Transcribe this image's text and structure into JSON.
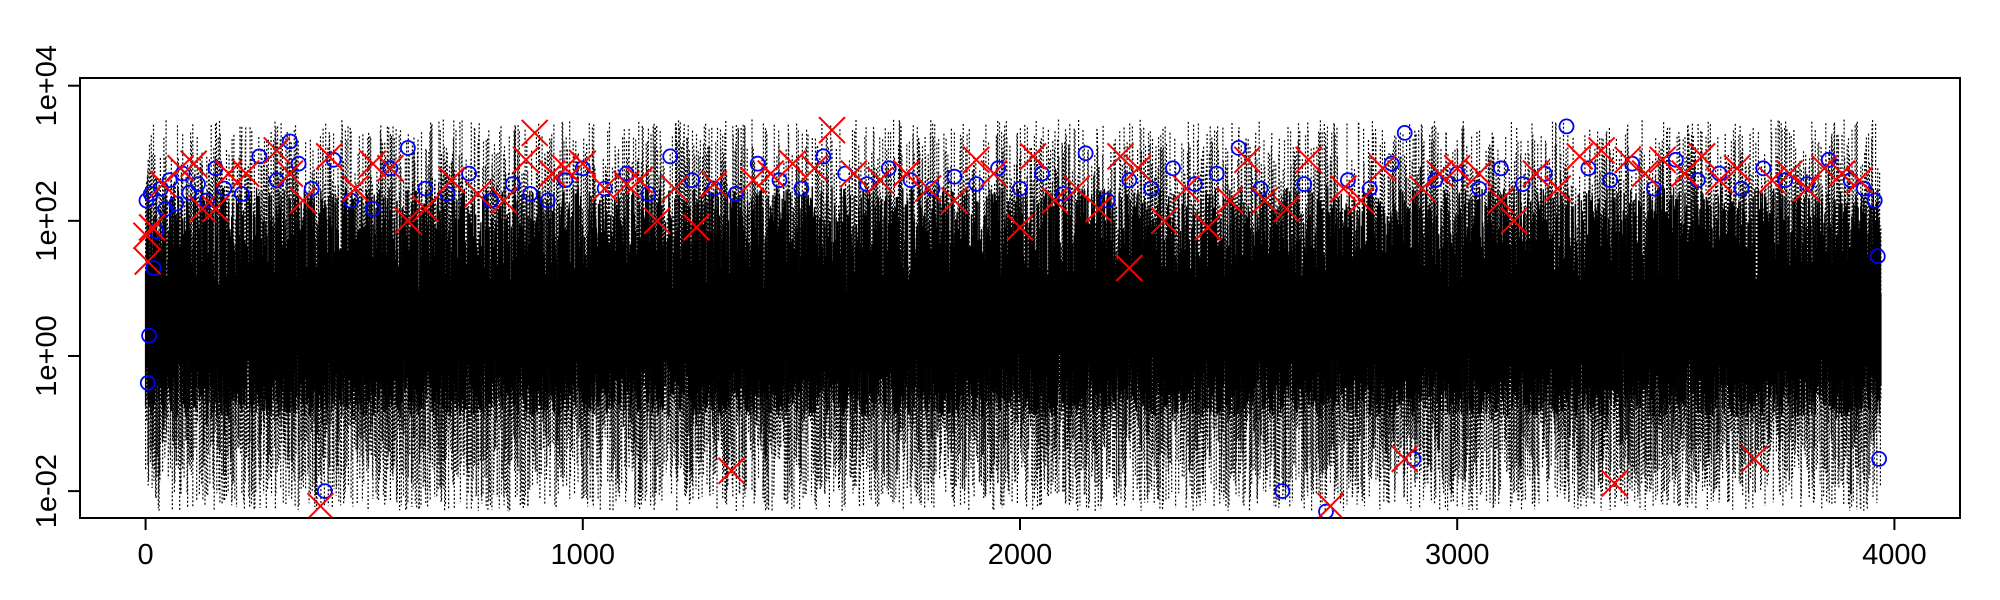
{
  "chart_data": {
    "type": "scatter",
    "title": "",
    "xlabel": "",
    "ylabel": "",
    "xlim": [
      -150,
      4150
    ],
    "ylim": [
      0.004,
      13000
    ],
    "y_scale": "log",
    "x_ticks": [
      0,
      1000,
      2000,
      3000,
      4000
    ],
    "x_tick_labels": [
      "0",
      "1000",
      "2000",
      "3000",
      "4000"
    ],
    "y_ticks": [
      0.01,
      1,
      100,
      10000
    ],
    "y_tick_labels": [
      "1e-02",
      "1e+00",
      "1e+02",
      "1e+04"
    ],
    "grid": false,
    "legend": "none",
    "n_points": 3970,
    "colors": {
      "series_line": "#000000",
      "circle_marker": "#0000ff",
      "cross_marker": "#ff0000",
      "axis": "#000000"
    },
    "series": [
      {
        "marker": "dotted-line",
        "color": "#000000",
        "note": "dense dotted spikes across full range"
      },
      {
        "marker": "circle",
        "color": "#0000ff",
        "points": [
          [
            2,
            200
          ],
          [
            5,
            0.4
          ],
          [
            8,
            2
          ],
          [
            12,
            250
          ],
          [
            18,
            20
          ],
          [
            25,
            70
          ],
          [
            35,
            300
          ],
          [
            45,
            150
          ],
          [
            55,
            400
          ],
          [
            70,
            180
          ],
          [
            85,
            500
          ],
          [
            100,
            260
          ],
          [
            120,
            350
          ],
          [
            140,
            200
          ],
          [
            160,
            600
          ],
          [
            180,
            300
          ],
          [
            220,
            250
          ],
          [
            260,
            900
          ],
          [
            300,
            400
          ],
          [
            330,
            1500
          ],
          [
            350,
            700
          ],
          [
            380,
            300
          ],
          [
            410,
            0.01
          ],
          [
            430,
            800
          ],
          [
            470,
            200
          ],
          [
            520,
            150
          ],
          [
            560,
            600
          ],
          [
            600,
            1200
          ],
          [
            640,
            300
          ],
          [
            690,
            250
          ],
          [
            740,
            500
          ],
          [
            790,
            200
          ],
          [
            840,
            350
          ],
          [
            880,
            250
          ],
          [
            920,
            200
          ],
          [
            960,
            400
          ],
          [
            1000,
            600
          ],
          [
            1050,
            300
          ],
          [
            1100,
            500
          ],
          [
            1150,
            250
          ],
          [
            1200,
            900
          ],
          [
            1250,
            400
          ],
          [
            1300,
            300
          ],
          [
            1350,
            250
          ],
          [
            1400,
            700
          ],
          [
            1450,
            400
          ],
          [
            1500,
            300
          ],
          [
            1550,
            900
          ],
          [
            1600,
            500
          ],
          [
            1650,
            350
          ],
          [
            1700,
            600
          ],
          [
            1750,
            400
          ],
          [
            1800,
            300
          ],
          [
            1850,
            450
          ],
          [
            1900,
            350
          ],
          [
            1950,
            600
          ],
          [
            2000,
            300
          ],
          [
            2050,
            500
          ],
          [
            2100,
            250
          ],
          [
            2150,
            1000
          ],
          [
            2200,
            200
          ],
          [
            2250,
            400
          ],
          [
            2300,
            300
          ],
          [
            2350,
            600
          ],
          [
            2400,
            350
          ],
          [
            2450,
            500
          ],
          [
            2500,
            1200
          ],
          [
            2550,
            300
          ],
          [
            2600,
            0.01
          ],
          [
            2650,
            350
          ],
          [
            2700,
            0.005
          ],
          [
            2750,
            400
          ],
          [
            2800,
            300
          ],
          [
            2850,
            700
          ],
          [
            2880,
            2000
          ],
          [
            2900,
            0.03
          ],
          [
            2950,
            400
          ],
          [
            3000,
            500
          ],
          [
            3050,
            300
          ],
          [
            3100,
            600
          ],
          [
            3150,
            350
          ],
          [
            3200,
            500
          ],
          [
            3250,
            2500
          ],
          [
            3300,
            600
          ],
          [
            3350,
            400
          ],
          [
            3400,
            700
          ],
          [
            3450,
            300
          ],
          [
            3500,
            800
          ],
          [
            3550,
            400
          ],
          [
            3600,
            500
          ],
          [
            3650,
            300
          ],
          [
            3700,
            600
          ],
          [
            3750,
            400
          ],
          [
            3800,
            350
          ],
          [
            3850,
            800
          ],
          [
            3900,
            400
          ],
          [
            3930,
            300
          ],
          [
            3955,
            200
          ],
          [
            3962,
            30
          ],
          [
            3965,
            0.03
          ]
        ]
      },
      {
        "marker": "cross",
        "color": "#ff0000",
        "points": [
          [
            2,
            60
          ],
          [
            5,
            25
          ],
          [
            15,
            80
          ],
          [
            40,
            350
          ],
          [
            80,
            600
          ],
          [
            110,
            700
          ],
          [
            130,
            150
          ],
          [
            160,
            150
          ],
          [
            190,
            500
          ],
          [
            230,
            500
          ],
          [
            300,
            1100
          ],
          [
            330,
            500
          ],
          [
            360,
            200
          ],
          [
            400,
            0.006
          ],
          [
            420,
            900
          ],
          [
            480,
            300
          ],
          [
            520,
            700
          ],
          [
            560,
            600
          ],
          [
            600,
            100
          ],
          [
            640,
            150
          ],
          [
            700,
            400
          ],
          [
            760,
            250
          ],
          [
            820,
            200
          ],
          [
            870,
            800
          ],
          [
            890,
            2000
          ],
          [
            930,
            500
          ],
          [
            960,
            600
          ],
          [
            1000,
            700
          ],
          [
            1050,
            300
          ],
          [
            1100,
            350
          ],
          [
            1130,
            400
          ],
          [
            1170,
            100
          ],
          [
            1210,
            300
          ],
          [
            1260,
            80
          ],
          [
            1300,
            350
          ],
          [
            1340,
            0.02
          ],
          [
            1390,
            400
          ],
          [
            1430,
            500
          ],
          [
            1480,
            700
          ],
          [
            1530,
            600
          ],
          [
            1570,
            2200
          ],
          [
            1620,
            500
          ],
          [
            1680,
            400
          ],
          [
            1740,
            500
          ],
          [
            1790,
            300
          ],
          [
            1850,
            200
          ],
          [
            1900,
            800
          ],
          [
            1940,
            500
          ],
          [
            2000,
            80
          ],
          [
            2030,
            900
          ],
          [
            2080,
            200
          ],
          [
            2130,
            300
          ],
          [
            2180,
            150
          ],
          [
            2230,
            900
          ],
          [
            2250,
            20
          ],
          [
            2270,
            600
          ],
          [
            2330,
            100
          ],
          [
            2380,
            300
          ],
          [
            2430,
            80
          ],
          [
            2480,
            200
          ],
          [
            2520,
            800
          ],
          [
            2560,
            200
          ],
          [
            2610,
            150
          ],
          [
            2660,
            800
          ],
          [
            2710,
            0.006
          ],
          [
            2740,
            300
          ],
          [
            2780,
            200
          ],
          [
            2830,
            600
          ],
          [
            2880,
            0.03
          ],
          [
            2920,
            300
          ],
          [
            2960,
            500
          ],
          [
            3000,
            600
          ],
          [
            3050,
            500
          ],
          [
            3100,
            200
          ],
          [
            3130,
            100
          ],
          [
            3180,
            500
          ],
          [
            3230,
            300
          ],
          [
            3280,
            900
          ],
          [
            3330,
            1100
          ],
          [
            3360,
            0.013
          ],
          [
            3390,
            800
          ],
          [
            3430,
            500
          ],
          [
            3470,
            800
          ],
          [
            3520,
            500
          ],
          [
            3560,
            900
          ],
          [
            3600,
            400
          ],
          [
            3640,
            600
          ],
          [
            3680,
            0.03
          ],
          [
            3720,
            400
          ],
          [
            3760,
            500
          ],
          [
            3800,
            300
          ],
          [
            3840,
            600
          ],
          [
            3880,
            500
          ],
          [
            3920,
            400
          ]
        ]
      }
    ]
  }
}
